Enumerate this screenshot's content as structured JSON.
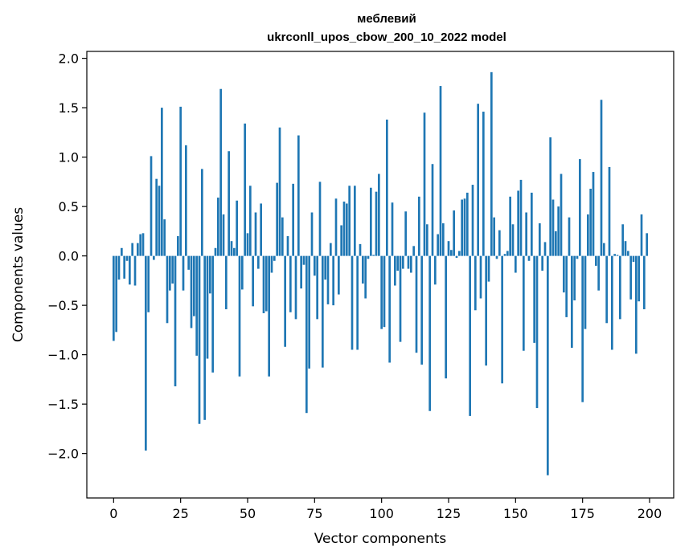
{
  "chart_data": {
    "type": "bar",
    "title": "меблевий",
    "subtitle": "ukrconll_upos_cbow_200_10_2022 model",
    "xlabel": "Vector components",
    "ylabel": "Components values",
    "xlim": [
      -10,
      209
    ],
    "ylim": [
      -2.45,
      2.07
    ],
    "xticks": [
      0,
      25,
      50,
      75,
      100,
      125,
      150,
      175,
      200
    ],
    "xtick_labels": [
      "0",
      "25",
      "50",
      "75",
      "100",
      "125",
      "150",
      "175",
      "200"
    ],
    "yticks": [
      -2.0,
      -1.5,
      -1.0,
      -0.5,
      0.0,
      0.5,
      1.0,
      1.5,
      2.0
    ],
    "ytick_labels": [
      "−2.0",
      "−1.5",
      "−1.0",
      "−0.5",
      "0.0",
      "0.5",
      "1.0",
      "1.5",
      "2.0"
    ],
    "grid": false,
    "color": "#1f77b4",
    "x": [
      0,
      1,
      2,
      3,
      4,
      5,
      6,
      7,
      8,
      9,
      10,
      11,
      12,
      13,
      14,
      15,
      16,
      17,
      18,
      19,
      20,
      21,
      22,
      23,
      24,
      25,
      26,
      27,
      28,
      29,
      30,
      31,
      32,
      33,
      34,
      35,
      36,
      37,
      38,
      39,
      40,
      41,
      42,
      43,
      44,
      45,
      46,
      47,
      48,
      49,
      50,
      51,
      52,
      53,
      54,
      55,
      56,
      57,
      58,
      59,
      60,
      61,
      62,
      63,
      64,
      65,
      66,
      67,
      68,
      69,
      70,
      71,
      72,
      73,
      74,
      75,
      76,
      77,
      78,
      79,
      80,
      81,
      82,
      83,
      84,
      85,
      86,
      87,
      88,
      89,
      90,
      91,
      92,
      93,
      94,
      95,
      96,
      97,
      98,
      99,
      100,
      101,
      102,
      103,
      104,
      105,
      106,
      107,
      108,
      109,
      110,
      111,
      112,
      113,
      114,
      115,
      116,
      117,
      118,
      119,
      120,
      121,
      122,
      123,
      124,
      125,
      126,
      127,
      128,
      129,
      130,
      131,
      132,
      133,
      134,
      135,
      136,
      137,
      138,
      139,
      140,
      141,
      142,
      143,
      144,
      145,
      146,
      147,
      148,
      149,
      150,
      151,
      152,
      153,
      154,
      155,
      156,
      157,
      158,
      159,
      160,
      161,
      162,
      163,
      164,
      165,
      166,
      167,
      168,
      169,
      170,
      171,
      172,
      173,
      174,
      175,
      176,
      177,
      178,
      179,
      180,
      181,
      182,
      183,
      184,
      185,
      186,
      187,
      188,
      189,
      190,
      191,
      192,
      193,
      194,
      195,
      196,
      197,
      198,
      199
    ],
    "values": [
      -0.86,
      -0.77,
      -0.24,
      0.08,
      -0.23,
      -0.05,
      -0.29,
      0.13,
      -0.3,
      0.13,
      0.22,
      0.23,
      -1.97,
      -0.57,
      1.01,
      -0.04,
      0.78,
      0.71,
      1.5,
      0.37,
      -0.68,
      -0.35,
      -0.28,
      -1.32,
      0.2,
      1.51,
      -0.35,
      1.12,
      -0.14,
      -0.73,
      -0.61,
      -1.01,
      -1.7,
      0.88,
      -1.66,
      -1.04,
      -0.38,
      -1.18,
      0.08,
      0.59,
      1.69,
      0.42,
      -0.54,
      1.06,
      0.15,
      0.08,
      0.56,
      -1.22,
      -0.34,
      1.34,
      0.23,
      0.71,
      -0.51,
      0.44,
      -0.13,
      0.53,
      -0.58,
      -0.56,
      -1.22,
      -0.17,
      -0.05,
      0.74,
      1.3,
      0.39,
      -0.92,
      0.2,
      -0.57,
      0.73,
      -0.64,
      1.22,
      -0.33,
      -0.09,
      -1.59,
      -1.14,
      0.44,
      -0.2,
      -0.64,
      0.75,
      -1.13,
      -0.24,
      -0.49,
      0.13,
      -0.5,
      0.58,
      -0.39,
      0.31,
      0.55,
      0.53,
      0.71,
      -0.95,
      0.71,
      -0.95,
      0.12,
      -0.28,
      -0.43,
      -0.03,
      0.69,
      0.01,
      0.65,
      0.83,
      -0.74,
      -0.72,
      1.38,
      -1.08,
      0.54,
      -0.3,
      -0.15,
      -0.87,
      -0.13,
      0.45,
      -0.13,
      -0.17,
      0.1,
      -0.98,
      0.6,
      -1.1,
      1.45,
      0.32,
      -1.57,
      0.93,
      -0.29,
      0.22,
      1.72,
      0.33,
      -1.24,
      0.15,
      0.06,
      0.46,
      -0.02,
      0.05,
      0.57,
      0.58,
      0.64,
      -1.62,
      0.72,
      -0.55,
      1.54,
      -0.43,
      1.46,
      -1.11,
      -0.26,
      1.86,
      0.39,
      -0.03,
      0.26,
      -1.29,
      0.02,
      0.05,
      0.6,
      0.32,
      -0.17,
      0.66,
      0.77,
      -0.96,
      0.44,
      -0.05,
      0.64,
      -0.88,
      -1.54,
      0.33,
      -0.15,
      0.14,
      -2.22,
      1.2,
      0.57,
      0.25,
      0.5,
      0.83,
      -0.37,
      -0.62,
      0.39,
      -0.93,
      -0.45,
      -0.03,
      0.98,
      -1.48,
      -0.74,
      0.42,
      0.68,
      0.85,
      -0.1,
      -0.35,
      1.58,
      0.13,
      -0.68,
      0.9,
      -0.95,
      0.02,
      0.01,
      -0.64,
      0.32,
      0.15,
      0.05,
      -0.44,
      -0.06,
      -0.99,
      -0.46,
      0.42,
      -0.54,
      0.23
    ]
  }
}
